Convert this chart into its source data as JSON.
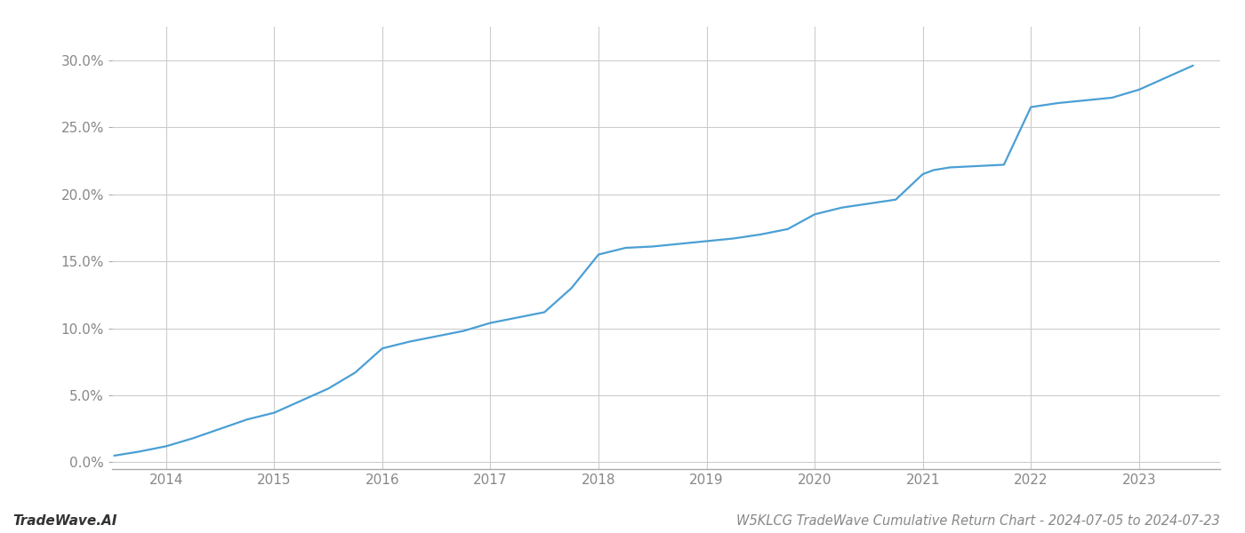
{
  "title": "W5KLCG TradeWave Cumulative Return Chart - 2024-07-05 to 2024-07-23",
  "watermark": "TradeWave.AI",
  "line_color": "#4a9fd4",
  "background_color": "#ffffff",
  "grid_color": "#cccccc",
  "x_values": [
    2013.52,
    2013.75,
    2014.0,
    2014.25,
    2014.5,
    2014.75,
    2015.0,
    2015.25,
    2015.5,
    2015.75,
    2016.0,
    2016.25,
    2016.5,
    2016.75,
    2017.0,
    2017.25,
    2017.5,
    2017.75,
    2018.0,
    2018.1,
    2018.25,
    2018.5,
    2018.75,
    2019.0,
    2019.25,
    2019.5,
    2019.75,
    2020.0,
    2020.25,
    2020.5,
    2020.75,
    2021.0,
    2021.1,
    2021.25,
    2021.5,
    2021.75,
    2022.0,
    2022.25,
    2022.5,
    2022.75,
    2023.0,
    2023.25,
    2023.5
  ],
  "y_values": [
    0.005,
    0.008,
    0.012,
    0.018,
    0.025,
    0.032,
    0.037,
    0.046,
    0.055,
    0.067,
    0.085,
    0.09,
    0.094,
    0.098,
    0.104,
    0.108,
    0.112,
    0.13,
    0.155,
    0.157,
    0.16,
    0.161,
    0.163,
    0.165,
    0.167,
    0.17,
    0.174,
    0.185,
    0.19,
    0.193,
    0.196,
    0.215,
    0.218,
    0.22,
    0.221,
    0.222,
    0.265,
    0.268,
    0.27,
    0.272,
    0.278,
    0.287,
    0.296
  ],
  "xlim": [
    2013.5,
    2023.75
  ],
  "ylim": [
    -0.005,
    0.325
  ],
  "xticks": [
    2014,
    2015,
    2016,
    2017,
    2018,
    2019,
    2020,
    2021,
    2022,
    2023
  ],
  "yticks": [
    0.0,
    0.05,
    0.1,
    0.15,
    0.2,
    0.25,
    0.3
  ],
  "title_fontsize": 10.5,
  "watermark_fontsize": 11,
  "axis_tick_fontsize": 11,
  "line_width": 1.6
}
